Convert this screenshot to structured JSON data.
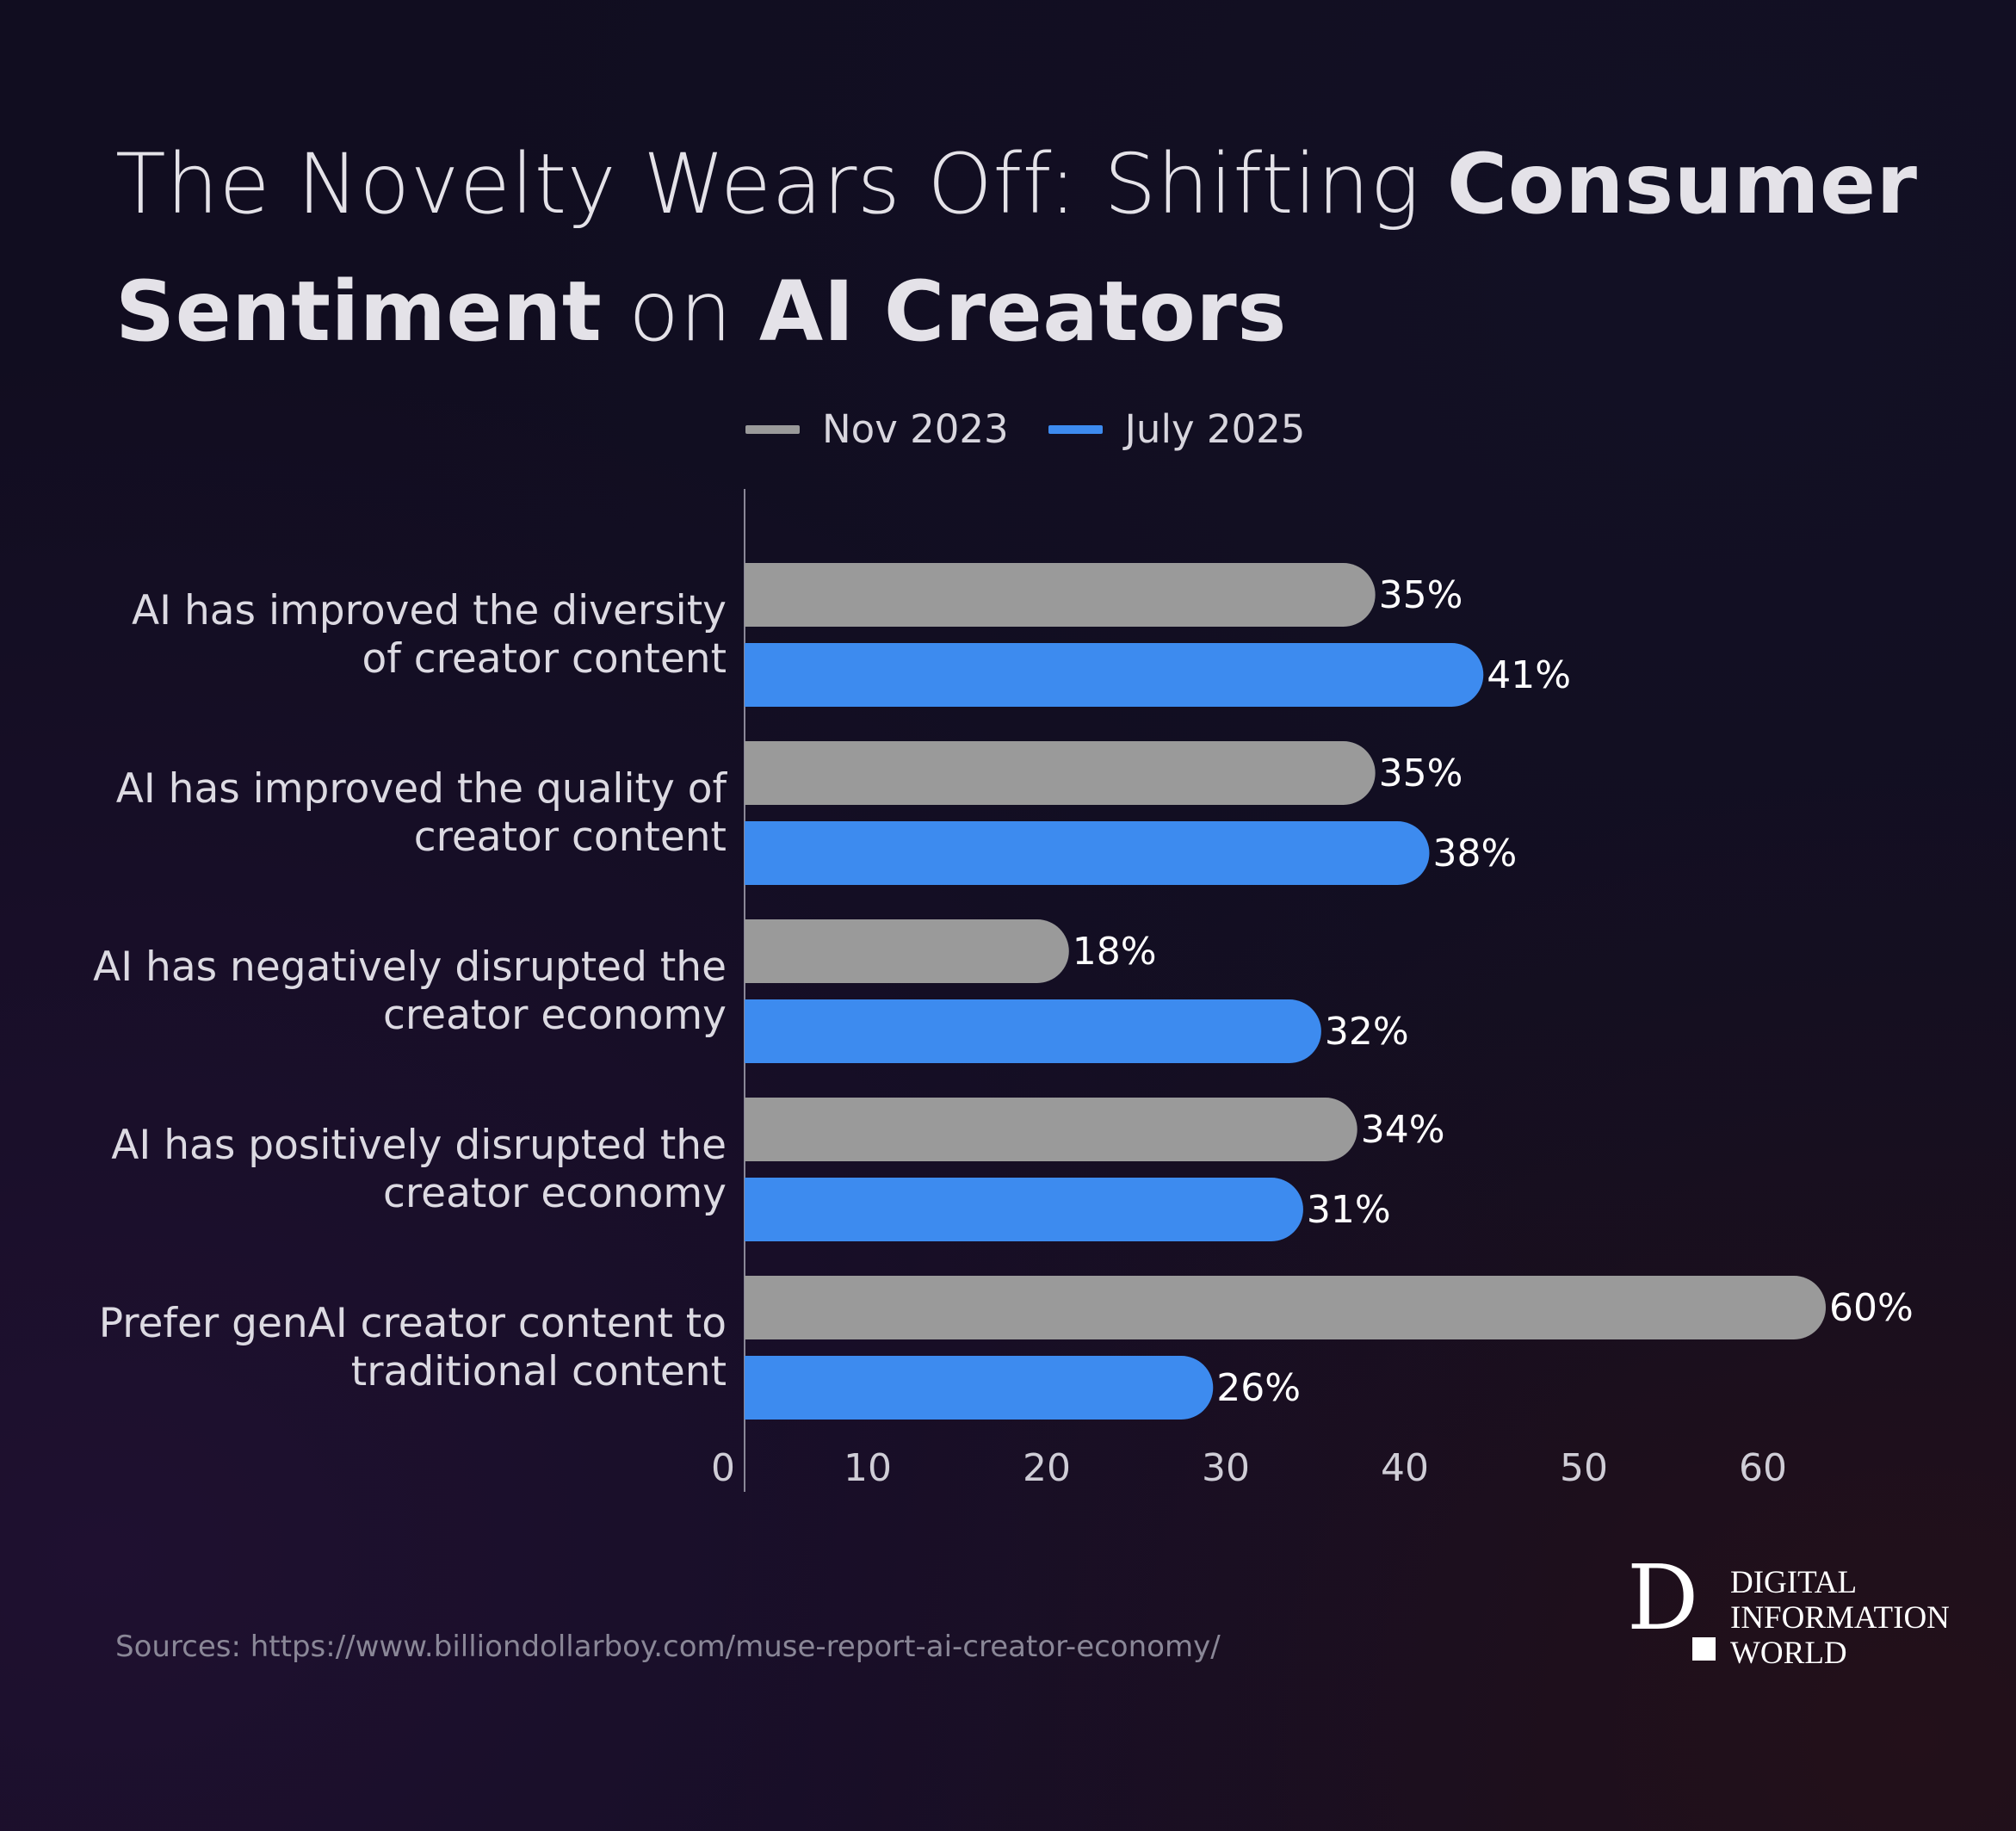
{
  "title": {
    "part1": "The Novelty Wears Off: Shifting ",
    "part2_bold": "Consumer Sentiment",
    "part3": " on ",
    "part4_bold": "AI Creators"
  },
  "source": "Sources: https://www.billiondollarboy.com/muse-report-ai-creator-economy/",
  "logo": {
    "letter": "D",
    "lines": [
      "DIGITAL",
      "INFORMATION",
      "WORLD"
    ]
  },
  "chart_data": {
    "type": "bar",
    "orientation": "horizontal",
    "title": "The Novelty Wears Off: Shifting Consumer Sentiment on AI Creators",
    "categories": [
      [
        "AI has improved the diversity",
        "of creator content"
      ],
      [
        "AI has improved the quality of",
        "creator content"
      ],
      [
        "AI has negatively disrupted the",
        "creator economy"
      ],
      [
        "AI has positively disrupted the",
        "creator economy"
      ],
      [
        "Prefer genAI creator content to",
        "traditional content"
      ]
    ],
    "series": [
      {
        "name": "Nov 2023",
        "color": "#9a9a9a",
        "values": [
          35,
          35,
          18,
          34,
          60
        ],
        "labels": [
          "35%",
          "35%",
          "18%",
          "34%",
          "60%"
        ]
      },
      {
        "name": "July 2025",
        "color": "#3d8bef",
        "values": [
          41,
          38,
          32,
          31,
          26
        ],
        "labels": [
          "41%",
          "38%",
          "32%",
          "31%",
          "26%"
        ]
      }
    ],
    "xlim": [
      0,
      60
    ],
    "xticks": [
      "0",
      "10",
      "20",
      "30",
      "40",
      "50",
      "60"
    ],
    "legend": "top-center",
    "grid": false,
    "xlabel": "",
    "ylabel": ""
  }
}
